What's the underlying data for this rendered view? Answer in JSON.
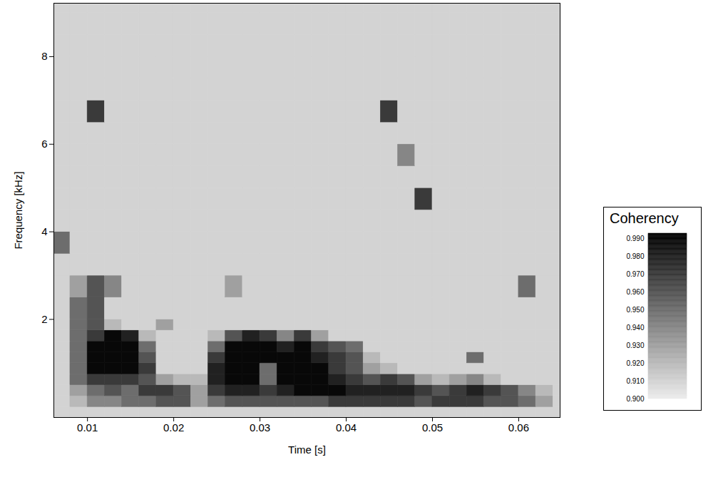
{
  "chart_data": {
    "type": "heatmap",
    "xlabel": "Time [s]",
    "ylabel": "Frequency [kHz]",
    "xlim": [
      0.0061,
      0.0648
    ],
    "xticks": [
      0.01,
      0.02,
      0.03,
      0.04,
      0.05,
      0.06
    ],
    "ylim": [
      -0.24,
      9.22
    ],
    "yticks": [
      2,
      4,
      6,
      8
    ],
    "grid": false,
    "x_edges": [
      0.006,
      0.008,
      0.01,
      0.012,
      0.014,
      0.016,
      0.018,
      0.02,
      0.022,
      0.024,
      0.026,
      0.028,
      0.03,
      0.032,
      0.034,
      0.036,
      0.038,
      0.04,
      0.042,
      0.044,
      0.046,
      0.048,
      0.05,
      0.052,
      0.054,
      0.056,
      0.058,
      0.06,
      0.062,
      0.064,
      0.065
    ],
    "y_edges": [
      -0.25,
      0,
      0.25,
      0.5,
      0.75,
      1.0,
      1.25,
      1.5,
      1.75,
      2.0,
      2.5,
      3.0,
      3.5,
      4.0,
      4.5,
      5.0,
      5.5,
      6.0,
      6.5,
      7.0,
      7.5,
      8.0,
      8.5,
      9.0,
      9.25
    ],
    "values": [
      [
        0.91,
        0.91,
        0.91,
        0.91,
        0.91,
        0.91,
        0.91,
        0.91,
        0.91,
        0.91,
        0.91,
        0.91,
        0.91,
        0.91,
        0.91,
        0.91,
        0.91,
        0.91,
        0.91,
        0.91,
        0.91,
        0.91,
        0.91,
        0.91,
        0.91,
        0.91,
        0.91,
        0.91,
        0.91,
        0.91
      ],
      [
        0.91,
        0.92,
        0.94,
        0.94,
        0.95,
        0.95,
        0.96,
        0.96,
        0.93,
        0.95,
        0.96,
        0.96,
        0.96,
        0.96,
        0.96,
        0.96,
        0.97,
        0.97,
        0.97,
        0.97,
        0.97,
        0.96,
        0.97,
        0.97,
        0.97,
        0.96,
        0.96,
        0.95,
        0.93,
        0.91
      ],
      [
        0.91,
        0.93,
        0.95,
        0.96,
        0.95,
        0.97,
        0.97,
        0.96,
        0.93,
        0.97,
        0.98,
        0.98,
        0.97,
        0.98,
        0.99,
        0.99,
        0.99,
        0.98,
        0.98,
        0.98,
        0.98,
        0.97,
        0.96,
        0.97,
        0.98,
        0.97,
        0.96,
        0.94,
        0.92,
        0.91
      ],
      [
        0.91,
        0.95,
        0.97,
        0.97,
        0.97,
        0.96,
        0.93,
        0.92,
        0.92,
        0.98,
        0.99,
        0.99,
        0.95,
        0.99,
        0.99,
        0.99,
        0.98,
        0.97,
        0.96,
        0.97,
        0.96,
        0.93,
        0.92,
        0.93,
        0.94,
        0.92,
        0.91,
        0.91,
        0.91,
        0.91
      ],
      [
        0.91,
        0.95,
        0.99,
        0.99,
        0.99,
        0.97,
        0.91,
        0.91,
        0.91,
        0.98,
        0.99,
        0.99,
        0.95,
        0.99,
        0.99,
        0.99,
        0.97,
        0.96,
        0.93,
        0.92,
        0.91,
        0.91,
        0.91,
        0.91,
        0.91,
        0.91,
        0.91,
        0.91,
        0.91,
        0.91
      ],
      [
        0.91,
        0.95,
        0.99,
        0.99,
        0.99,
        0.96,
        0.91,
        0.91,
        0.91,
        0.97,
        0.99,
        0.99,
        0.99,
        0.99,
        0.99,
        0.98,
        0.97,
        0.96,
        0.92,
        0.91,
        0.91,
        0.91,
        0.91,
        0.91,
        0.95,
        0.91,
        0.91,
        0.91,
        0.91,
        0.91
      ],
      [
        0.91,
        0.95,
        0.99,
        0.99,
        0.99,
        0.95,
        0.91,
        0.91,
        0.91,
        0.95,
        0.99,
        0.99,
        0.99,
        0.98,
        0.99,
        0.97,
        0.96,
        0.95,
        0.91,
        0.91,
        0.91,
        0.91,
        0.91,
        0.91,
        0.91,
        0.91,
        0.91,
        0.91,
        0.91,
        0.91
      ],
      [
        0.91,
        0.95,
        0.97,
        0.99,
        0.98,
        0.92,
        0.91,
        0.91,
        0.91,
        0.92,
        0.96,
        0.98,
        0.97,
        0.94,
        0.97,
        0.93,
        0.91,
        0.91,
        0.91,
        0.91,
        0.91,
        0.91,
        0.91,
        0.91,
        0.91,
        0.91,
        0.91,
        0.91,
        0.91,
        0.91
      ],
      [
        0.91,
        0.95,
        0.96,
        0.92,
        0.91,
        0.91,
        0.93,
        0.91,
        0.91,
        0.91,
        0.91,
        0.91,
        0.91,
        0.91,
        0.91,
        0.91,
        0.91,
        0.91,
        0.91,
        0.91,
        0.91,
        0.91,
        0.91,
        0.91,
        0.91,
        0.91,
        0.91,
        0.91,
        0.91,
        0.91
      ],
      [
        0.91,
        0.95,
        0.96,
        0.91,
        0.91,
        0.91,
        0.91,
        0.91,
        0.91,
        0.91,
        0.91,
        0.91,
        0.91,
        0.91,
        0.91,
        0.91,
        0.91,
        0.91,
        0.91,
        0.91,
        0.91,
        0.91,
        0.91,
        0.91,
        0.91,
        0.91,
        0.91,
        0.91,
        0.91,
        0.91
      ],
      [
        0.91,
        0.93,
        0.96,
        0.94,
        0.91,
        0.91,
        0.91,
        0.91,
        0.91,
        0.91,
        0.93,
        0.91,
        0.91,
        0.91,
        0.91,
        0.91,
        0.91,
        0.91,
        0.91,
        0.91,
        0.91,
        0.91,
        0.91,
        0.91,
        0.91,
        0.91,
        0.91,
        0.95,
        0.91,
        0.91
      ],
      [
        0.91,
        0.91,
        0.91,
        0.91,
        0.91,
        0.91,
        0.91,
        0.91,
        0.91,
        0.91,
        0.91,
        0.91,
        0.91,
        0.91,
        0.91,
        0.91,
        0.91,
        0.91,
        0.91,
        0.91,
        0.91,
        0.91,
        0.91,
        0.91,
        0.91,
        0.91,
        0.91,
        0.91,
        0.91,
        0.91
      ],
      [
        0.95,
        0.91,
        0.91,
        0.91,
        0.91,
        0.91,
        0.91,
        0.91,
        0.91,
        0.91,
        0.91,
        0.91,
        0.91,
        0.91,
        0.91,
        0.91,
        0.91,
        0.91,
        0.91,
        0.91,
        0.91,
        0.91,
        0.91,
        0.91,
        0.91,
        0.91,
        0.91,
        0.91,
        0.91,
        0.91
      ],
      [
        0.91,
        0.91,
        0.91,
        0.91,
        0.91,
        0.91,
        0.91,
        0.91,
        0.91,
        0.91,
        0.91,
        0.91,
        0.91,
        0.91,
        0.91,
        0.91,
        0.91,
        0.91,
        0.91,
        0.91,
        0.91,
        0.91,
        0.91,
        0.91,
        0.91,
        0.91,
        0.91,
        0.91,
        0.91,
        0.91
      ],
      [
        0.91,
        0.91,
        0.91,
        0.91,
        0.91,
        0.91,
        0.91,
        0.91,
        0.91,
        0.91,
        0.91,
        0.91,
        0.91,
        0.91,
        0.91,
        0.91,
        0.91,
        0.91,
        0.91,
        0.91,
        0.91,
        0.97,
        0.91,
        0.91,
        0.91,
        0.91,
        0.91,
        0.91,
        0.91,
        0.91
      ],
      [
        0.91,
        0.91,
        0.91,
        0.91,
        0.91,
        0.91,
        0.91,
        0.91,
        0.91,
        0.91,
        0.91,
        0.91,
        0.91,
        0.91,
        0.91,
        0.91,
        0.91,
        0.91,
        0.91,
        0.91,
        0.91,
        0.91,
        0.91,
        0.91,
        0.91,
        0.91,
        0.91,
        0.91,
        0.91,
        0.91
      ],
      [
        0.91,
        0.91,
        0.91,
        0.91,
        0.91,
        0.91,
        0.91,
        0.91,
        0.91,
        0.91,
        0.91,
        0.91,
        0.91,
        0.91,
        0.91,
        0.91,
        0.91,
        0.91,
        0.91,
        0.91,
        0.94,
        0.91,
        0.91,
        0.91,
        0.91,
        0.91,
        0.91,
        0.91,
        0.91,
        0.91
      ],
      [
        0.91,
        0.91,
        0.91,
        0.91,
        0.91,
        0.91,
        0.91,
        0.91,
        0.91,
        0.91,
        0.91,
        0.91,
        0.91,
        0.91,
        0.91,
        0.91,
        0.91,
        0.91,
        0.91,
        0.91,
        0.91,
        0.91,
        0.91,
        0.91,
        0.91,
        0.91,
        0.91,
        0.91,
        0.91,
        0.91
      ],
      [
        0.91,
        0.91,
        0.97,
        0.91,
        0.91,
        0.91,
        0.91,
        0.91,
        0.91,
        0.91,
        0.91,
        0.91,
        0.91,
        0.91,
        0.91,
        0.91,
        0.91,
        0.91,
        0.91,
        0.97,
        0.91,
        0.91,
        0.91,
        0.91,
        0.91,
        0.91,
        0.91,
        0.91,
        0.91,
        0.91
      ],
      [
        0.91,
        0.91,
        0.91,
        0.91,
        0.91,
        0.91,
        0.91,
        0.91,
        0.91,
        0.91,
        0.91,
        0.91,
        0.91,
        0.91,
        0.91,
        0.91,
        0.91,
        0.91,
        0.91,
        0.91,
        0.91,
        0.91,
        0.91,
        0.91,
        0.91,
        0.91,
        0.91,
        0.91,
        0.91,
        0.91
      ],
      [
        0.91,
        0.91,
        0.91,
        0.91,
        0.91,
        0.91,
        0.91,
        0.91,
        0.91,
        0.91,
        0.91,
        0.91,
        0.91,
        0.91,
        0.91,
        0.91,
        0.91,
        0.91,
        0.91,
        0.91,
        0.91,
        0.91,
        0.91,
        0.91,
        0.91,
        0.91,
        0.91,
        0.91,
        0.91,
        0.91
      ],
      [
        0.91,
        0.91,
        0.91,
        0.91,
        0.91,
        0.91,
        0.91,
        0.91,
        0.91,
        0.91,
        0.91,
        0.91,
        0.91,
        0.91,
        0.91,
        0.91,
        0.91,
        0.91,
        0.91,
        0.91,
        0.91,
        0.91,
        0.91,
        0.91,
        0.91,
        0.91,
        0.91,
        0.91,
        0.91,
        0.91
      ],
      [
        0.91,
        0.91,
        0.91,
        0.91,
        0.91,
        0.91,
        0.91,
        0.91,
        0.91,
        0.91,
        0.91,
        0.91,
        0.91,
        0.91,
        0.91,
        0.91,
        0.91,
        0.91,
        0.91,
        0.91,
        0.91,
        0.91,
        0.91,
        0.91,
        0.91,
        0.91,
        0.91,
        0.91,
        0.91,
        0.91
      ],
      [
        0.91,
        0.91,
        0.91,
        0.91,
        0.91,
        0.91,
        0.91,
        0.91,
        0.91,
        0.91,
        0.91,
        0.91,
        0.91,
        0.91,
        0.91,
        0.91,
        0.91,
        0.91,
        0.91,
        0.91,
        0.91,
        0.91,
        0.91,
        0.91,
        0.91,
        0.91,
        0.91,
        0.91,
        0.91,
        0.91
      ]
    ],
    "zlabel": "Coherency",
    "zlim": [
      0.9,
      0.993
    ],
    "zticks": [
      {
        "value": 0.9,
        "label": "0.900"
      },
      {
        "value": 0.91,
        "label": "0.910"
      },
      {
        "value": 0.92,
        "label": "0.920"
      },
      {
        "value": 0.93,
        "label": "0.930"
      },
      {
        "value": 0.94,
        "label": "0.940"
      },
      {
        "value": 0.95,
        "label": "0.950"
      },
      {
        "value": 0.96,
        "label": "0.960"
      },
      {
        "value": 0.97,
        "label": "0.970"
      },
      {
        "value": 0.98,
        "label": "0.980"
      },
      {
        "value": 0.99,
        "label": "0.990"
      }
    ]
  }
}
